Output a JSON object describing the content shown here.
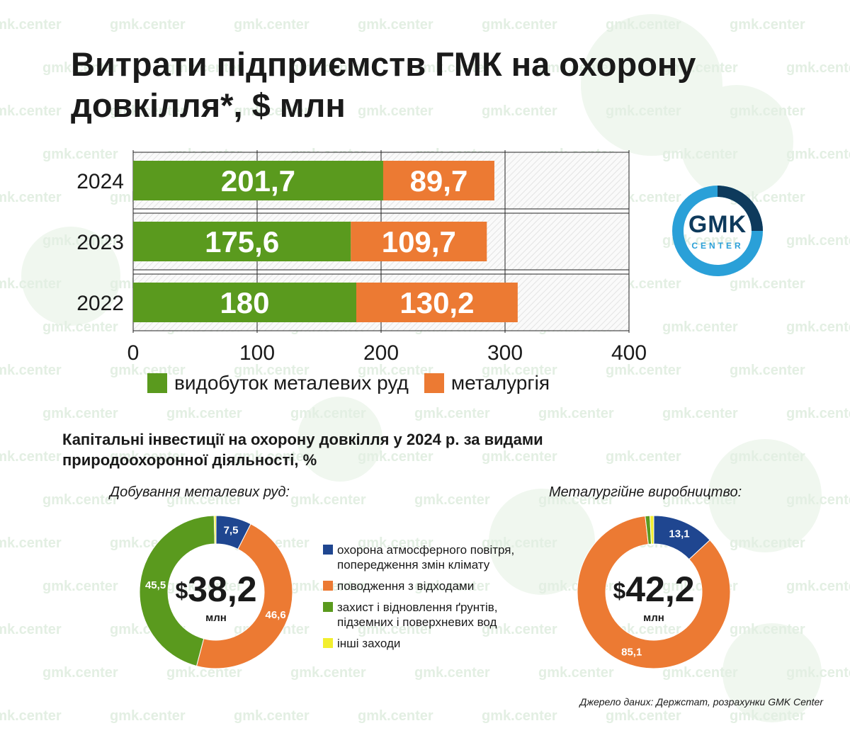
{
  "title": "Витрати підприємств ГМК на охорону довкілля*, $ млн",
  "watermark": "gmk.center",
  "logo": {
    "main": "GMK",
    "sub": "CENTER"
  },
  "colors": {
    "green": "#5a9a1e",
    "orange": "#ec7a33",
    "blue": "#1f4690",
    "yellow": "#f2ee2e",
    "logo_dark": "#0e3a5c",
    "logo_light": "#2aa0d8"
  },
  "chart_data": [
    {
      "type": "bar",
      "orientation": "horizontal",
      "stacked": true,
      "categories": [
        "2024",
        "2023",
        "2022"
      ],
      "series": [
        {
          "name": "видобуток металевих руд",
          "values": [
            201.7,
            175.6,
            180
          ],
          "labels": [
            "201,7",
            "175,6",
            "180"
          ],
          "color": "#5a9a1e"
        },
        {
          "name": "металургія",
          "values": [
            89.7,
            109.7,
            130.2
          ],
          "labels": [
            "89,7",
            "109,7",
            "130,2"
          ],
          "color": "#ec7a33"
        }
      ],
      "xlim": [
        0,
        400
      ],
      "xticks": [
        0,
        100,
        200,
        300,
        400
      ],
      "xtick_labels": [
        "0",
        "100",
        "200",
        "300",
        "400"
      ],
      "grid": true,
      "legend": "bottom"
    },
    {
      "type": "pie",
      "donut": true,
      "title": "Добування металевих руд:",
      "center": {
        "currency": "$",
        "value": "38,2",
        "unit": "млн"
      },
      "labels": [
        "охорона атмосферного повітря, попередження змін клімату",
        "поводження з відходами",
        "захист і відновлення ґрунтів, підземних і поверхневих вод",
        "інші заходи"
      ],
      "values": [
        7.5,
        46.6,
        45.5,
        0.4
      ],
      "value_labels": [
        "7,5",
        "46,6",
        "45,5",
        ""
      ],
      "colors": [
        "#1f4690",
        "#ec7a33",
        "#5a9a1e",
        "#f2ee2e"
      ]
    },
    {
      "type": "pie",
      "donut": true,
      "title": "Металургійне виробництво:",
      "center": {
        "currency": "$",
        "value": "42,2",
        "unit": "млн"
      },
      "labels": [
        "охорона атмосферного повітря, попередження змін клімату",
        "поводження з відходами",
        "захист і відновлення ґрунтів, підземних і поверхневих вод",
        "інші заходи"
      ],
      "values": [
        13.1,
        85.1,
        1.0,
        0.8
      ],
      "value_labels": [
        "13,1",
        "85,1",
        "",
        ""
      ],
      "colors": [
        "#1f4690",
        "#ec7a33",
        "#5a9a1e",
        "#f2ee2e"
      ]
    }
  ],
  "subtitle": "Капітальні інвестиції на охорону довкілля у 2024 р. за видами природоохоронної діяльності, %",
  "pie_legend": [
    {
      "label": "охорона атмосферного повітря, попередження змін клімату",
      "color": "#1f4690"
    },
    {
      "label": "поводження з відходами",
      "color": "#ec7a33"
    },
    {
      "label": "захист і відновлення ґрунтів, підземних і поверхневих вод",
      "color": "#5a9a1e"
    },
    {
      "label": "інші заходи",
      "color": "#f2ee2e"
    }
  ],
  "source": "Джерело даних: Держстат, розрахунки GMK Center"
}
